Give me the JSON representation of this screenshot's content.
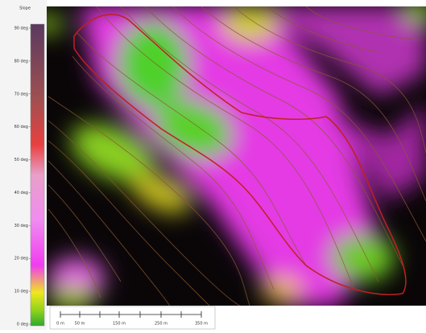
{
  "legend": {
    "title": "Slope",
    "labels": [
      "90 deg",
      "80 deg",
      "70 deg",
      "60 deg",
      "50 deg",
      "40 deg",
      "30 deg",
      "20 deg",
      "10 deg",
      "0 deg"
    ]
  },
  "scale_bar": {
    "labels": [
      "0 m",
      "50 m",
      "150 m",
      "250 m",
      "350 m"
    ]
  }
}
